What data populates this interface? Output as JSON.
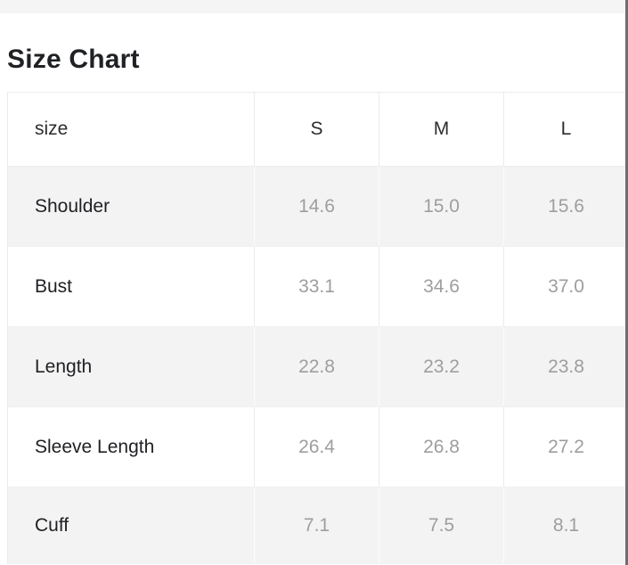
{
  "page": {
    "title": "Size Chart"
  },
  "colors": {
    "top_strip_bg": "#f5f5f6",
    "title_text": "#1f2124",
    "header_text": "#2c2d2e",
    "label_text": "#202124",
    "value_text": "#9e9ea0",
    "alt_row_bg": "#f3f3f4",
    "border": "#ececec",
    "scrollbar": "#6e6e6e"
  },
  "chart_data": {
    "type": "table",
    "title": "Size Chart",
    "columns": [
      "size",
      "S",
      "M",
      "L"
    ],
    "rows": [
      {
        "label": "Shoulder",
        "values": [
          "14.6",
          "15.0",
          "15.6"
        ]
      },
      {
        "label": "Bust",
        "values": [
          "33.1",
          "34.6",
          "37.0"
        ]
      },
      {
        "label": "Length",
        "values": [
          "22.8",
          "23.2",
          "23.8"
        ]
      },
      {
        "label": "Sleeve Length",
        "values": [
          "26.4",
          "26.8",
          "27.2"
        ]
      },
      {
        "label": "Cuff",
        "values": [
          "7.1",
          "7.5",
          "8.1"
        ]
      }
    ]
  }
}
